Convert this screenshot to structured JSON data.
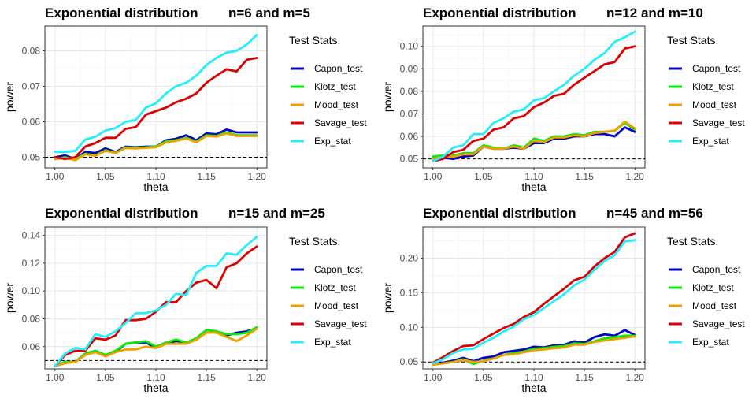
{
  "chart_data": [
    {
      "type": "line",
      "title": "Exponential distribution",
      "subtitle": "n=6 and m=5",
      "xlabel": "theta",
      "ylabel": "power",
      "xlim": [
        0.99,
        1.21
      ],
      "ylim": [
        0.047,
        0.087
      ],
      "xticks": [
        "1.00",
        "1.05",
        "1.10",
        "1.15",
        "1.20"
      ],
      "yticks": [
        "0.05",
        "0.06",
        "0.07",
        "0.08"
      ],
      "legend_title": "Test Stats.",
      "legend_position": "right",
      "grid": true,
      "reference_line": 0.05,
      "x": [
        1.0,
        1.01,
        1.02,
        1.03,
        1.04,
        1.05,
        1.06,
        1.07,
        1.08,
        1.09,
        1.1,
        1.11,
        1.12,
        1.13,
        1.14,
        1.15,
        1.16,
        1.17,
        1.18,
        1.19,
        1.2
      ],
      "series": [
        {
          "name": "Capon_test",
          "color": "#0000CD",
          "values": [
            0.05,
            0.0505,
            0.0495,
            0.0515,
            0.0512,
            0.0525,
            0.0515,
            0.053,
            0.0528,
            0.053,
            0.053,
            0.0548,
            0.0552,
            0.0562,
            0.0548,
            0.0567,
            0.0565,
            0.0578,
            0.057,
            0.057,
            0.057
          ]
        },
        {
          "name": "Klotz_test",
          "color": "#00EE00",
          "values": [
            0.0495,
            0.05,
            0.0495,
            0.051,
            0.0505,
            0.052,
            0.0512,
            0.0528,
            0.0526,
            0.0528,
            0.053,
            0.0545,
            0.0548,
            0.0555,
            0.0544,
            0.0562,
            0.056,
            0.057,
            0.0562,
            0.0562,
            0.0562
          ]
        },
        {
          "name": "Mood_test",
          "color": "#EEA000",
          "values": [
            0.0495,
            0.0498,
            0.0492,
            0.0508,
            0.0504,
            0.0518,
            0.0512,
            0.0526,
            0.0525,
            0.0527,
            0.0528,
            0.0542,
            0.0546,
            0.0553,
            0.0542,
            0.056,
            0.0558,
            0.0567,
            0.056,
            0.056,
            0.056
          ]
        },
        {
          "name": "Savage_test",
          "color": "#DD0000",
          "values": [
            0.05,
            0.0495,
            0.05,
            0.053,
            0.054,
            0.0555,
            0.0555,
            0.058,
            0.0585,
            0.062,
            0.063,
            0.064,
            0.0655,
            0.0665,
            0.068,
            0.071,
            0.073,
            0.0748,
            0.0742,
            0.0775,
            0.078
          ]
        },
        {
          "name": "Exp_stat",
          "color": "#22EEFF",
          "values": [
            0.0515,
            0.0515,
            0.0518,
            0.055,
            0.0558,
            0.0575,
            0.0582,
            0.06,
            0.0605,
            0.064,
            0.0652,
            0.068,
            0.07,
            0.071,
            0.073,
            0.076,
            0.078,
            0.0795,
            0.08,
            0.0818,
            0.0845
          ]
        }
      ]
    },
    {
      "type": "line",
      "title": "Exponential distribution",
      "subtitle": "n=12 and m=10",
      "xlabel": "theta",
      "ylabel": "power",
      "xlim": [
        0.99,
        1.21
      ],
      "ylim": [
        0.046,
        0.109
      ],
      "xticks": [
        "1.00",
        "1.05",
        "1.10",
        "1.15",
        "1.20"
      ],
      "yticks": [
        "0.05",
        "0.06",
        "0.07",
        "0.08",
        "0.09",
        "0.10"
      ],
      "legend_title": "Test Stats.",
      "legend_position": "right",
      "grid": true,
      "reference_line": 0.05,
      "x": [
        1.0,
        1.01,
        1.02,
        1.03,
        1.04,
        1.05,
        1.06,
        1.07,
        1.08,
        1.09,
        1.1,
        1.11,
        1.12,
        1.13,
        1.14,
        1.15,
        1.16,
        1.17,
        1.18,
        1.19,
        1.2
      ],
      "series": [
        {
          "name": "Capon_test",
          "color": "#0000CD",
          "values": [
            0.049,
            0.0505,
            0.05,
            0.051,
            0.0515,
            0.0555,
            0.0545,
            0.0545,
            0.055,
            0.0545,
            0.057,
            0.057,
            0.059,
            0.059,
            0.06,
            0.06,
            0.061,
            0.061,
            0.06,
            0.064,
            0.062
          ]
        },
        {
          "name": "Klotz_test",
          "color": "#00EE00",
          "values": [
            0.051,
            0.0515,
            0.0515,
            0.0525,
            0.0525,
            0.056,
            0.055,
            0.0545,
            0.056,
            0.055,
            0.059,
            0.058,
            0.06,
            0.06,
            0.061,
            0.0605,
            0.062,
            0.062,
            0.0625,
            0.066,
            0.063
          ]
        },
        {
          "name": "Mood_test",
          "color": "#EEA000",
          "values": [
            0.05,
            0.051,
            0.051,
            0.052,
            0.052,
            0.0555,
            0.0545,
            0.0545,
            0.0555,
            0.0545,
            0.058,
            0.0575,
            0.0595,
            0.0595,
            0.0605,
            0.06,
            0.0615,
            0.062,
            0.0625,
            0.0665,
            0.0635
          ]
        },
        {
          "name": "Savage_test",
          "color": "#DD0000",
          "values": [
            0.049,
            0.05,
            0.053,
            0.054,
            0.058,
            0.059,
            0.063,
            0.064,
            0.068,
            0.069,
            0.073,
            0.075,
            0.078,
            0.079,
            0.083,
            0.086,
            0.089,
            0.092,
            0.093,
            0.099,
            0.1
          ]
        },
        {
          "name": "Exp_stat",
          "color": "#22EEFF",
          "values": [
            0.049,
            0.051,
            0.055,
            0.056,
            0.061,
            0.061,
            0.066,
            0.068,
            0.071,
            0.072,
            0.076,
            0.077,
            0.08,
            0.083,
            0.087,
            0.09,
            0.094,
            0.097,
            0.102,
            0.104,
            0.1065
          ]
        }
      ]
    },
    {
      "type": "line",
      "title": "Exponential distribution",
      "subtitle": "n=15 and m=25",
      "xlabel": "theta",
      "ylabel": "power",
      "xlim": [
        0.99,
        1.21
      ],
      "ylim": [
        0.044,
        0.146
      ],
      "xticks": [
        "1.00",
        "1.05",
        "1.10",
        "1.15",
        "1.20"
      ],
      "yticks": [
        "0.06",
        "0.08",
        "0.10",
        "0.12",
        "0.14"
      ],
      "legend_title": "Test Stats.",
      "legend_position": "right",
      "grid": true,
      "reference_line": 0.05,
      "x": [
        1.0,
        1.01,
        1.02,
        1.03,
        1.04,
        1.05,
        1.06,
        1.07,
        1.08,
        1.09,
        1.1,
        1.11,
        1.12,
        1.13,
        1.14,
        1.15,
        1.16,
        1.17,
        1.18,
        1.19,
        1.2
      ],
      "series": [
        {
          "name": "Capon_test",
          "color": "#0000CD",
          "values": [
            0.046,
            0.049,
            0.049,
            0.055,
            0.057,
            0.054,
            0.056,
            0.062,
            0.063,
            0.063,
            0.059,
            0.062,
            0.064,
            0.063,
            0.065,
            0.072,
            0.071,
            0.068,
            0.07,
            0.071,
            0.073
          ]
        },
        {
          "name": "Klotz_test",
          "color": "#00EE00",
          "values": [
            0.046,
            0.049,
            0.049,
            0.055,
            0.057,
            0.054,
            0.057,
            0.062,
            0.063,
            0.064,
            0.06,
            0.063,
            0.065,
            0.063,
            0.066,
            0.072,
            0.071,
            0.069,
            0.069,
            0.07,
            0.074
          ]
        },
        {
          "name": "Mood_test",
          "color": "#EEA000",
          "values": [
            0.046,
            0.048,
            0.049,
            0.054,
            0.056,
            0.053,
            0.056,
            0.058,
            0.058,
            0.06,
            0.059,
            0.062,
            0.062,
            0.062,
            0.065,
            0.07,
            0.07,
            0.067,
            0.064,
            0.068,
            0.073
          ]
        },
        {
          "name": "Savage_test",
          "color": "#DD0000",
          "values": [
            0.046,
            0.054,
            0.057,
            0.057,
            0.066,
            0.065,
            0.068,
            0.079,
            0.079,
            0.08,
            0.085,
            0.092,
            0.092,
            0.1,
            0.106,
            0.108,
            0.102,
            0.117,
            0.12,
            0.127,
            0.132
          ]
        },
        {
          "name": "Exp_stat",
          "color": "#22EEFF",
          "values": [
            0.046,
            0.055,
            0.059,
            0.058,
            0.069,
            0.067,
            0.071,
            0.077,
            0.084,
            0.084,
            0.086,
            0.09,
            0.098,
            0.097,
            0.113,
            0.118,
            0.118,
            0.127,
            0.126,
            0.133,
            0.139
          ]
        }
      ]
    },
    {
      "type": "line",
      "title": "Exponential distribution",
      "subtitle": "n=45 and m=56",
      "xlabel": "theta",
      "ylabel": "power",
      "xlim": [
        0.99,
        1.21
      ],
      "ylim": [
        0.04,
        0.245
      ],
      "xticks": [
        "1.00",
        "1.05",
        "1.10",
        "1.15",
        "1.20"
      ],
      "yticks": [
        "0.05",
        "0.10",
        "0.15",
        "0.20"
      ],
      "legend_title": "Test Stats.",
      "legend_position": "right",
      "grid": true,
      "reference_line": 0.05,
      "x": [
        1.0,
        1.01,
        1.02,
        1.03,
        1.04,
        1.05,
        1.06,
        1.07,
        1.08,
        1.09,
        1.1,
        1.11,
        1.12,
        1.13,
        1.14,
        1.15,
        1.16,
        1.17,
        1.18,
        1.19,
        1.2
      ],
      "series": [
        {
          "name": "Capon_test",
          "color": "#0000CD",
          "values": [
            0.047,
            0.049,
            0.052,
            0.056,
            0.051,
            0.056,
            0.058,
            0.064,
            0.066,
            0.068,
            0.072,
            0.071,
            0.074,
            0.075,
            0.08,
            0.078,
            0.086,
            0.09,
            0.088,
            0.096,
            0.089
          ]
        },
        {
          "name": "Klotz_test",
          "color": "#00EE00",
          "values": [
            0.046,
            0.048,
            0.05,
            0.054,
            0.047,
            0.052,
            0.055,
            0.06,
            0.063,
            0.065,
            0.069,
            0.07,
            0.072,
            0.073,
            0.077,
            0.076,
            0.08,
            0.084,
            0.086,
            0.088,
            0.088
          ]
        },
        {
          "name": "Mood_test",
          "color": "#EEA000",
          "values": [
            0.046,
            0.048,
            0.05,
            0.053,
            0.05,
            0.051,
            0.055,
            0.06,
            0.061,
            0.064,
            0.067,
            0.068,
            0.07,
            0.071,
            0.075,
            0.075,
            0.079,
            0.081,
            0.083,
            0.085,
            0.087
          ]
        },
        {
          "name": "Savage_test",
          "color": "#DD0000",
          "values": [
            0.049,
            0.057,
            0.066,
            0.073,
            0.074,
            0.083,
            0.091,
            0.099,
            0.105,
            0.115,
            0.122,
            0.134,
            0.145,
            0.156,
            0.168,
            0.173,
            0.188,
            0.2,
            0.209,
            0.23,
            0.236
          ]
        },
        {
          "name": "Exp_stat",
          "color": "#22EEFF",
          "values": [
            0.048,
            0.054,
            0.063,
            0.068,
            0.069,
            0.078,
            0.085,
            0.094,
            0.101,
            0.112,
            0.118,
            0.128,
            0.138,
            0.148,
            0.161,
            0.169,
            0.183,
            0.196,
            0.204,
            0.224,
            0.226
          ]
        }
      ]
    }
  ]
}
